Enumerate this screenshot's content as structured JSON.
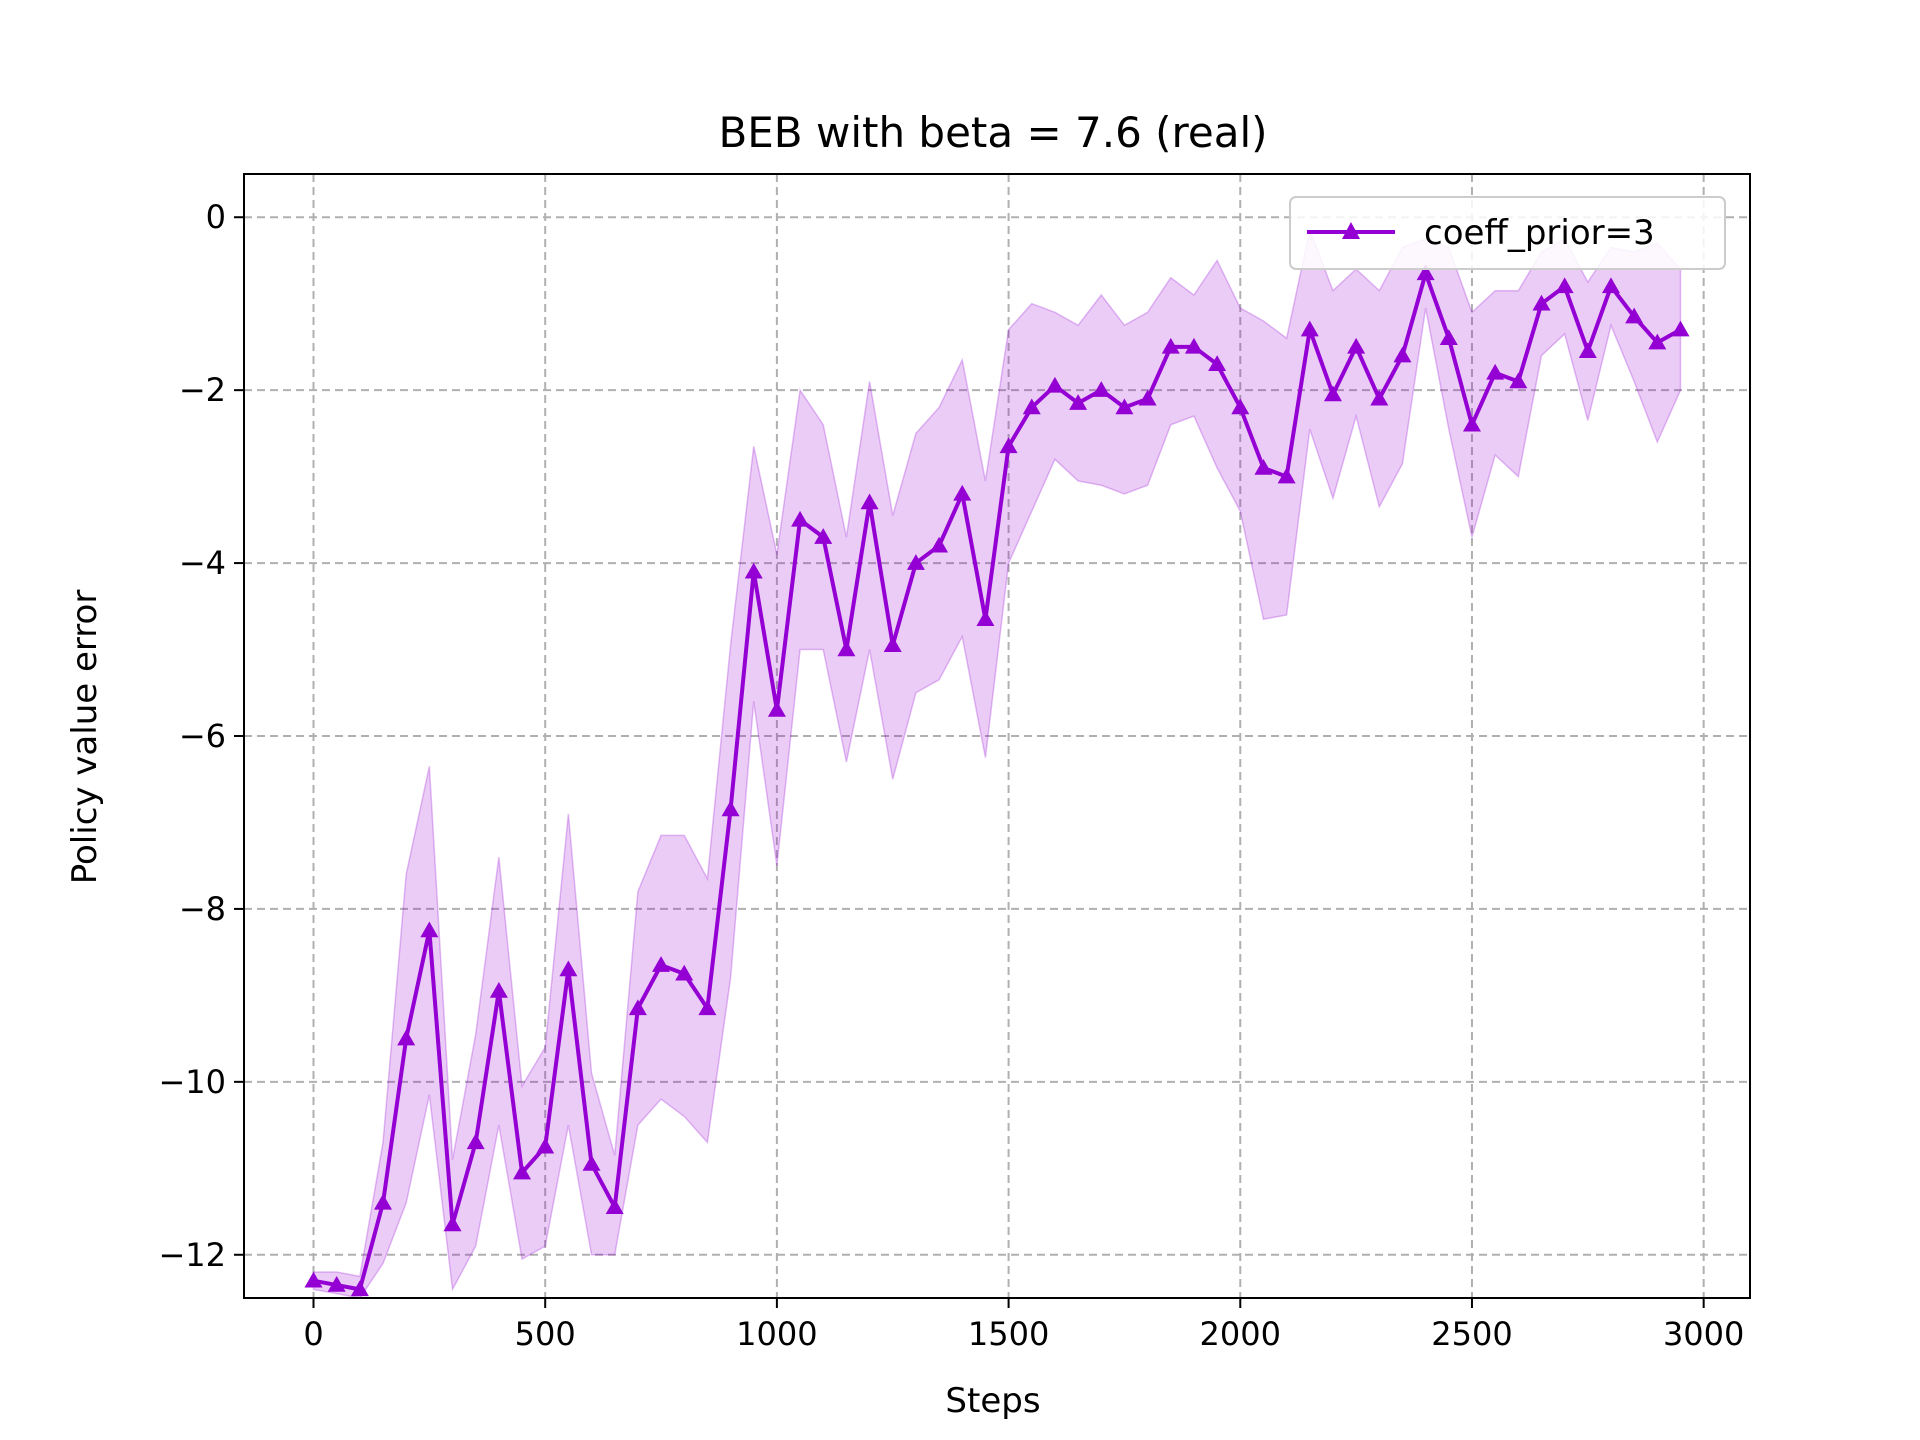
{
  "chart_data": {
    "type": "line",
    "title": "BEB with beta = 7.6 (real)",
    "xlabel": "Steps",
    "ylabel": "Policy value error",
    "xlim": [
      -150,
      3100
    ],
    "ylim": [
      -12.5,
      0.5
    ],
    "xticks": [
      0,
      500,
      1000,
      1500,
      2000,
      2500,
      3000
    ],
    "xtick_labels": [
      "0",
      "500",
      "1000",
      "1500",
      "2000",
      "2500",
      "3000"
    ],
    "yticks": [
      0,
      -2,
      -4,
      -6,
      -8,
      -10,
      -12
    ],
    "ytick_labels": [
      "0",
      "−2",
      "−4",
      "−6",
      "−8",
      "−10",
      "−12"
    ],
    "grid": true,
    "legend_position": "top-right",
    "series": [
      {
        "name": "coeff_prior=3",
        "color": "#9400d3",
        "band_color": "#9400d3",
        "marker": "triangle-up",
        "x": [
          0,
          50,
          100,
          150,
          200,
          250,
          300,
          350,
          400,
          450,
          500,
          550,
          600,
          650,
          700,
          750,
          800,
          850,
          900,
          950,
          1000,
          1050,
          1100,
          1150,
          1200,
          1250,
          1300,
          1350,
          1400,
          1450,
          1500,
          1550,
          1600,
          1650,
          1700,
          1750,
          1800,
          1850,
          1900,
          1950,
          2000,
          2050,
          2100,
          2150,
          2200,
          2250,
          2300,
          2350,
          2400,
          2450,
          2500,
          2550,
          2600,
          2650,
          2700,
          2750,
          2800,
          2850,
          2900,
          2950
        ],
        "y": [
          -12.3,
          -12.35,
          -12.4,
          -11.4,
          -9.5,
          -8.25,
          -11.65,
          -10.7,
          -8.95,
          -11.05,
          -10.75,
          -8.7,
          -10.95,
          -11.45,
          -9.15,
          -8.65,
          -8.75,
          -9.15,
          -6.85,
          -4.1,
          -5.7,
          -3.5,
          -3.7,
          -5.0,
          -3.3,
          -4.95,
          -4.0,
          -3.8,
          -3.2,
          -4.65,
          -2.65,
          -2.2,
          -1.95,
          -2.15,
          -2.0,
          -2.2,
          -2.1,
          -1.5,
          -1.5,
          -1.7,
          -2.2,
          -2.9,
          -3.0,
          -1.3,
          -2.05,
          -1.5,
          -2.1,
          -1.6,
          -0.65,
          -1.4,
          -2.4,
          -1.8,
          -1.9,
          -1.0,
          -0.8,
          -1.55,
          -0.8,
          -1.15,
          -1.45,
          -1.3
        ],
        "lower": [
          -12.4,
          -12.45,
          -12.5,
          -12.1,
          -11.4,
          -10.15,
          -12.4,
          -11.9,
          -10.5,
          -12.05,
          -11.9,
          -10.5,
          -12.0,
          -12.0,
          -10.5,
          -10.2,
          -10.4,
          -10.7,
          -8.8,
          -5.6,
          -7.5,
          -5.0,
          -5.0,
          -6.3,
          -5.0,
          -6.5,
          -5.5,
          -5.35,
          -4.85,
          -6.25,
          -4.0,
          -3.4,
          -2.8,
          -3.05,
          -3.1,
          -3.2,
          -3.1,
          -2.4,
          -2.3,
          -2.9,
          -3.4,
          -4.65,
          -4.6,
          -2.45,
          -3.25,
          -2.3,
          -3.35,
          -2.85,
          -1.05,
          -2.45,
          -3.7,
          -2.75,
          -3.0,
          -1.6,
          -1.35,
          -2.35,
          -1.25,
          -1.9,
          -2.6,
          -2.0
        ],
        "upper": [
          -12.2,
          -12.2,
          -12.25,
          -10.7,
          -7.6,
          -6.35,
          -10.9,
          -9.45,
          -7.4,
          -10.05,
          -9.6,
          -6.9,
          -9.9,
          -10.85,
          -7.8,
          -7.15,
          -7.15,
          -7.65,
          -4.95,
          -2.65,
          -3.9,
          -2.0,
          -2.4,
          -3.7,
          -1.9,
          -3.45,
          -2.5,
          -2.2,
          -1.65,
          -3.05,
          -1.3,
          -1.0,
          -1.1,
          -1.25,
          -0.9,
          -1.25,
          -1.1,
          -0.7,
          -0.9,
          -0.5,
          -1.05,
          -1.2,
          -1.4,
          -0.15,
          -0.85,
          -0.6,
          -0.85,
          -0.35,
          -0.25,
          -0.35,
          -1.1,
          -0.85,
          -0.85,
          -0.4,
          -0.25,
          -0.75,
          -0.35,
          -0.4,
          -0.3,
          -0.6
        ]
      }
    ]
  }
}
